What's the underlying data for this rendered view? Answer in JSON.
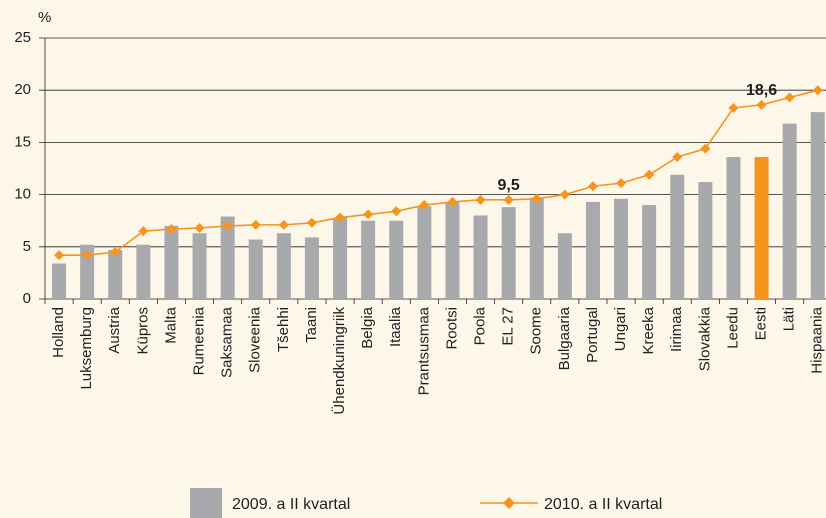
{
  "chart_data": {
    "type": "bar_line",
    "y_axis_label": "%",
    "categories": [
      "Holland",
      "Luksemburg",
      "Austria",
      "Küpros",
      "Malta",
      "Rumeenia",
      "Saksamaa",
      "Sloveenia",
      "Tšehhi",
      "Taani",
      "Ühendkuningriik",
      "Belgia",
      "Itaalia",
      "Prantsusmaa",
      "Rootsi",
      "Poola",
      "EL 27",
      "Soome",
      "Bulgaaria",
      "Portugal",
      "Ungari",
      "Kreeka",
      "Iirimaa",
      "Slovakkia",
      "Leedu",
      "Eesti",
      "Läti",
      "Hispaania"
    ],
    "series": [
      {
        "name": "2009. a II kvartal",
        "kind": "bar",
        "color": "#a7a9ac",
        "colors": [
          "#a7a9ac",
          "#a7a9ac",
          "#a7a9ac",
          "#a7a9ac",
          "#a7a9ac",
          "#a7a9ac",
          "#a7a9ac",
          "#a7a9ac",
          "#a7a9ac",
          "#a7a9ac",
          "#a7a9ac",
          "#a7a9ac",
          "#a7a9ac",
          "#a7a9ac",
          "#a7a9ac",
          "#a7a9ac",
          "#a7a9ac",
          "#a7a9ac",
          "#a7a9ac",
          "#a7a9ac",
          "#a7a9ac",
          "#a7a9ac",
          "#a7a9ac",
          "#a7a9ac",
          "#a7a9ac",
          "#f7941d",
          "#a7a9ac",
          "#a7a9ac"
        ],
        "values": [
          3.4,
          5.2,
          4.7,
          5.2,
          7.0,
          6.3,
          7.9,
          5.7,
          6.3,
          5.9,
          7.8,
          7.5,
          7.5,
          8.9,
          9.3,
          8.0,
          8.8,
          9.7,
          6.3,
          9.3,
          9.6,
          9.0,
          11.9,
          11.2,
          13.6,
          13.6,
          16.8,
          17.9
        ]
      },
      {
        "name": "2010. a II kvartal",
        "kind": "line",
        "color": "#f7941d",
        "values": [
          4.2,
          4.2,
          4.5,
          6.5,
          6.7,
          6.8,
          7.0,
          7.1,
          7.1,
          7.3,
          7.8,
          8.1,
          8.4,
          9.0,
          9.3,
          9.5,
          9.5,
          9.6,
          10.0,
          10.8,
          11.1,
          11.9,
          13.6,
          14.4,
          18.3,
          18.6,
          19.3,
          20.0
        ],
        "value_labels": [
          null,
          null,
          null,
          null,
          null,
          null,
          null,
          null,
          null,
          null,
          null,
          null,
          null,
          null,
          null,
          null,
          "9,5",
          null,
          null,
          null,
          null,
          null,
          null,
          null,
          null,
          "18,6",
          null,
          null
        ]
      }
    ],
    "ylim": [
      0,
      25
    ],
    "yticks": [
      0,
      5,
      10,
      15,
      20,
      25
    ],
    "grid": true,
    "legend": "bottom"
  }
}
